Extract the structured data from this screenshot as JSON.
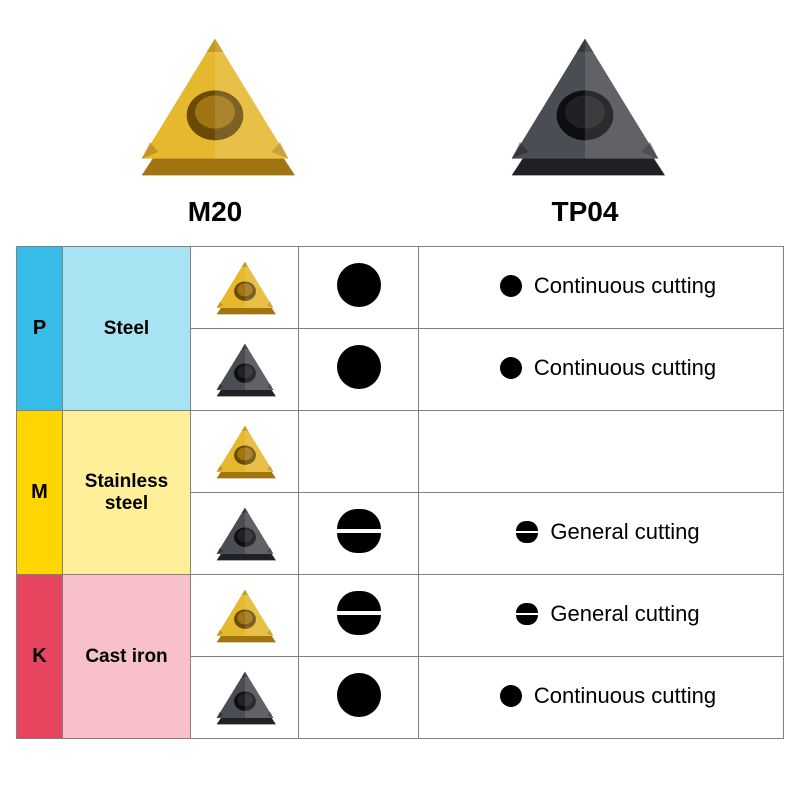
{
  "header": {
    "items": [
      {
        "label": "M20",
        "insert_color": "gold"
      },
      {
        "label": "TP04",
        "insert_color": "dark"
      }
    ]
  },
  "categories": [
    {
      "code": "P",
      "material": "Steel",
      "code_bg": "#37bce8",
      "mat_bg": "#a8e3f3"
    },
    {
      "code": "M",
      "material": "Stainless\nsteel",
      "code_bg": "#ffd500",
      "mat_bg": "#ffef99"
    },
    {
      "code": "K",
      "material": "Cast iron",
      "code_bg": "#e64560",
      "mat_bg": "#f8c0c9"
    }
  ],
  "rows": [
    {
      "cat": 0,
      "insert_color": "gold",
      "icon": "full",
      "desc": "Continuous cutting"
    },
    {
      "cat": 0,
      "insert_color": "dark",
      "icon": "full",
      "desc": "Continuous cutting"
    },
    {
      "cat": 1,
      "insert_color": "gold",
      "icon": null,
      "desc": null
    },
    {
      "cat": 1,
      "insert_color": "dark",
      "icon": "split",
      "desc": "General cutting"
    },
    {
      "cat": 2,
      "insert_color": "gold",
      "icon": "split",
      "desc": "General cutting"
    },
    {
      "cat": 2,
      "insert_color": "dark",
      "icon": "full",
      "desc": "Continuous cutting"
    }
  ],
  "insert_palette": {
    "gold": {
      "face": "#e6b82e",
      "shadow": "#a07410",
      "hole": "#6b4a08"
    },
    "dark": {
      "face": "#4a4d53",
      "shadow": "#1f2124",
      "hole": "#0d0e10"
    }
  }
}
